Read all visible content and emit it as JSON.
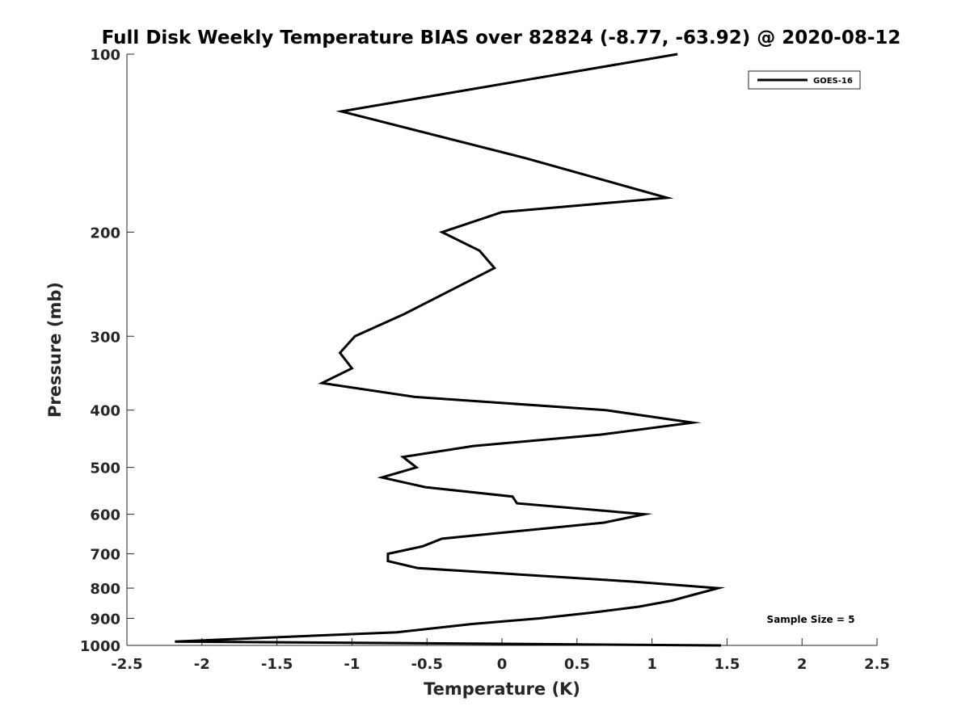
{
  "chart_data": {
    "type": "line",
    "title": "Full Disk Weekly Temperature BIAS over 82824 (-8.77, -63.92) @ 2020-08-12",
    "xlabel": "Temperature (K)",
    "ylabel": "Pressure (mb)",
    "xlim": [
      -2.5,
      2.5
    ],
    "ylim": [
      1000,
      100
    ],
    "yscale": "log",
    "x_ticks": [
      -2.5,
      -2,
      -1.5,
      -1,
      -0.5,
      0,
      0.5,
      1,
      1.5,
      2,
      2.5
    ],
    "x_tick_labels": [
      "-2.5",
      "-2",
      "-1.5",
      "-1",
      "-0.5",
      "0",
      "0.5",
      "1",
      "1.5",
      "2",
      "2.5"
    ],
    "y_ticks": [
      100,
      200,
      300,
      400,
      500,
      600,
      700,
      800,
      900,
      1000
    ],
    "y_tick_labels": [
      "100",
      "200",
      "300",
      "400",
      "500",
      "600",
      "700",
      "800",
      "900",
      "1000"
    ],
    "grid": false,
    "legend_position": "top-right",
    "annotation": "Sample Size = 5",
    "series": [
      {
        "name": "GOES-16",
        "color": "#000000",
        "points": [
          {
            "x": 1.17,
            "p": 100
          },
          {
            "x": -1.07,
            "p": 125
          },
          {
            "x": 0.16,
            "p": 150
          },
          {
            "x": 1.1,
            "p": 175
          },
          {
            "x": 0.0,
            "p": 185
          },
          {
            "x": -0.4,
            "p": 200
          },
          {
            "x": -0.15,
            "p": 215
          },
          {
            "x": -0.05,
            "p": 230
          },
          {
            "x": -0.65,
            "p": 275
          },
          {
            "x": -0.98,
            "p": 300
          },
          {
            "x": -1.08,
            "p": 320
          },
          {
            "x": -1.0,
            "p": 340
          },
          {
            "x": -1.2,
            "p": 360
          },
          {
            "x": -0.58,
            "p": 380
          },
          {
            "x": 0.69,
            "p": 400
          },
          {
            "x": 1.27,
            "p": 420
          },
          {
            "x": 0.66,
            "p": 440
          },
          {
            "x": -0.19,
            "p": 460
          },
          {
            "x": -0.66,
            "p": 480
          },
          {
            "x": -0.57,
            "p": 500
          },
          {
            "x": -0.8,
            "p": 520
          },
          {
            "x": -0.51,
            "p": 540
          },
          {
            "x": 0.07,
            "p": 560
          },
          {
            "x": 0.1,
            "p": 575
          },
          {
            "x": 0.95,
            "p": 600
          },
          {
            "x": 0.68,
            "p": 620
          },
          {
            "x": -0.4,
            "p": 660
          },
          {
            "x": -0.53,
            "p": 680
          },
          {
            "x": -0.76,
            "p": 700
          },
          {
            "x": -0.76,
            "p": 720
          },
          {
            "x": -0.56,
            "p": 740
          },
          {
            "x": 0.87,
            "p": 780
          },
          {
            "x": 1.44,
            "p": 800
          },
          {
            "x": 1.13,
            "p": 840
          },
          {
            "x": 0.91,
            "p": 860
          },
          {
            "x": 0.6,
            "p": 880
          },
          {
            "x": 0.25,
            "p": 900
          },
          {
            "x": -0.2,
            "p": 920
          },
          {
            "x": -0.7,
            "p": 950
          },
          {
            "x": -2.18,
            "p": 985
          },
          {
            "x": 1.46,
            "p": 1000
          }
        ]
      }
    ]
  }
}
